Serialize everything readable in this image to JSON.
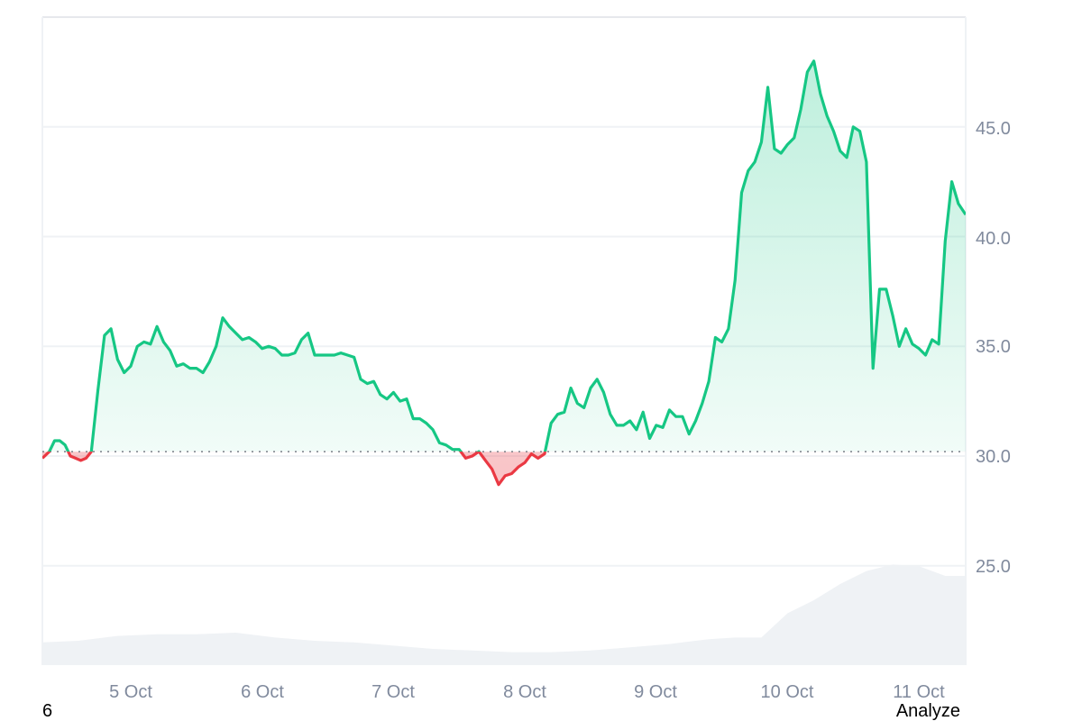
{
  "chart_data": {
    "type": "area",
    "title": "",
    "xlabel": "",
    "ylabel": "",
    "baseline": 30.2,
    "ylim": [
      20.5,
      50.5
    ],
    "yticks": [
      25.0,
      30.0,
      35.0,
      40.0,
      45.0
    ],
    "ytick_labels": [
      "25.0",
      "30.0",
      "35.0",
      "40.0",
      "45.0"
    ],
    "xticks": [
      "5 Oct",
      "6 Oct",
      "7 Oct",
      "8 Oct",
      "9 Oct",
      "10 Oct",
      "11 Oct"
    ],
    "grid": true,
    "legend": "none",
    "colors": {
      "up": "#16c784",
      "down": "#ea3943",
      "up_fill": "#16c784",
      "down_fill": "#ea3943",
      "volume": "#eff2f5",
      "grid": "#eff2f5",
      "axis_text": "#808a9d"
    },
    "x_unit": "days since 4 Oct 00:00",
    "series": [
      {
        "name": "Price",
        "x": [
          0.33,
          0.38,
          0.42,
          0.46,
          0.5,
          0.54,
          0.58,
          0.62,
          0.66,
          0.7,
          0.75,
          0.8,
          0.85,
          0.9,
          0.95,
          1.0,
          1.05,
          1.1,
          1.15,
          1.2,
          1.25,
          1.3,
          1.35,
          1.4,
          1.45,
          1.5,
          1.55,
          1.6,
          1.65,
          1.7,
          1.75,
          1.8,
          1.85,
          1.9,
          1.95,
          2.0,
          2.05,
          2.1,
          2.15,
          2.2,
          2.25,
          2.3,
          2.35,
          2.4,
          2.45,
          2.5,
          2.55,
          2.6,
          2.65,
          2.7,
          2.75,
          2.8,
          2.85,
          2.9,
          2.95,
          3.0,
          3.05,
          3.1,
          3.15,
          3.2,
          3.25,
          3.3,
          3.35,
          3.4,
          3.45,
          3.5,
          3.55,
          3.6,
          3.65,
          3.7,
          3.75,
          3.8,
          3.85,
          3.9,
          3.95,
          4.0,
          4.05,
          4.1,
          4.15,
          4.2,
          4.25,
          4.3,
          4.35,
          4.4,
          4.45,
          4.5,
          4.55,
          4.6,
          4.65,
          4.7,
          4.75,
          4.8,
          4.85,
          4.9,
          4.95,
          5.0,
          5.05,
          5.1,
          5.15,
          5.2,
          5.25,
          5.3,
          5.35,
          5.4,
          5.45,
          5.5,
          5.55,
          5.6,
          5.65,
          5.7,
          5.75,
          5.8,
          5.85,
          5.9,
          5.95,
          6.0,
          6.05,
          6.1,
          6.15,
          6.2,
          6.25,
          6.3,
          6.35,
          6.4,
          6.45,
          6.5,
          6.55,
          6.6,
          6.65,
          6.7,
          6.75,
          6.8,
          6.85,
          6.9,
          6.95,
          7.0,
          7.05,
          7.1,
          7.15,
          7.2,
          7.25,
          7.3,
          7.35
        ],
        "values": [
          29.9,
          30.2,
          30.7,
          30.7,
          30.5,
          30.0,
          29.9,
          29.8,
          29.9,
          30.2,
          33.0,
          35.5,
          35.8,
          34.4,
          33.8,
          34.1,
          35.0,
          35.2,
          35.1,
          35.9,
          35.2,
          34.8,
          34.1,
          34.2,
          34.0,
          34.0,
          33.8,
          34.3,
          35.0,
          36.3,
          35.9,
          35.6,
          35.3,
          35.4,
          35.2,
          34.9,
          35.0,
          34.9,
          34.6,
          34.6,
          34.7,
          35.3,
          35.6,
          34.6,
          34.6,
          34.6,
          34.6,
          34.7,
          34.6,
          34.5,
          33.5,
          33.3,
          33.4,
          32.8,
          32.6,
          32.9,
          32.5,
          32.6,
          31.7,
          31.7,
          31.5,
          31.2,
          30.6,
          30.5,
          30.3,
          30.3,
          29.9,
          30.0,
          30.2,
          29.8,
          29.4,
          28.7,
          29.1,
          29.2,
          29.5,
          29.7,
          30.1,
          29.9,
          30.1,
          31.5,
          31.9,
          32.0,
          33.1,
          32.4,
          32.2,
          33.1,
          33.5,
          32.9,
          31.9,
          31.4,
          31.4,
          31.6,
          31.2,
          32.0,
          30.8,
          31.4,
          31.3,
          32.1,
          31.8,
          31.8,
          31.0,
          31.6,
          32.4,
          33.4,
          35.4,
          35.2,
          35.8,
          38.0,
          42.0,
          43.0,
          43.4,
          44.3,
          46.8,
          44.0,
          43.8,
          44.2,
          44.5,
          45.8,
          47.5,
          48.0,
          46.5,
          45.5,
          44.8,
          43.9,
          43.6,
          45.0,
          44.8,
          43.4,
          34.0,
          37.6,
          37.6,
          36.4,
          35.0,
          35.8,
          35.1,
          34.9,
          34.6,
          35.3,
          35.1,
          39.8,
          42.5,
          41.5,
          41.0
        ],
        "color": "#16c784"
      },
      {
        "name": "Volume",
        "x": [
          0.0,
          0.3,
          0.6,
          0.9,
          1.2,
          1.5,
          1.8,
          2.1,
          2.4,
          2.7,
          3.0,
          3.3,
          3.6,
          3.9,
          4.2,
          4.5,
          4.8,
          5.1,
          5.4,
          5.6,
          5.8,
          6.0,
          6.2,
          6.4,
          6.6,
          6.8,
          7.0,
          7.2,
          7.35
        ],
        "values": [
          0.16,
          0.14,
          0.15,
          0.18,
          0.19,
          0.19,
          0.2,
          0.17,
          0.15,
          0.14,
          0.12,
          0.1,
          0.09,
          0.08,
          0.08,
          0.09,
          0.11,
          0.13,
          0.16,
          0.17,
          0.17,
          0.32,
          0.4,
          0.5,
          0.58,
          0.62,
          0.61,
          0.55,
          0.55
        ],
        "color": "#eff2f5",
        "scale": "relative"
      }
    ]
  },
  "axes": {
    "y_labels": [
      "45.0",
      "40.0",
      "35.0",
      "30.0",
      "25.0"
    ],
    "x_labels": [
      "5 Oct",
      "6 Oct",
      "7 Oct",
      "8 Oct",
      "9 Oct",
      "10 Oct",
      "11 Oct"
    ]
  },
  "overlay": {
    "left_text": "6",
    "right_text": "Analyze"
  }
}
